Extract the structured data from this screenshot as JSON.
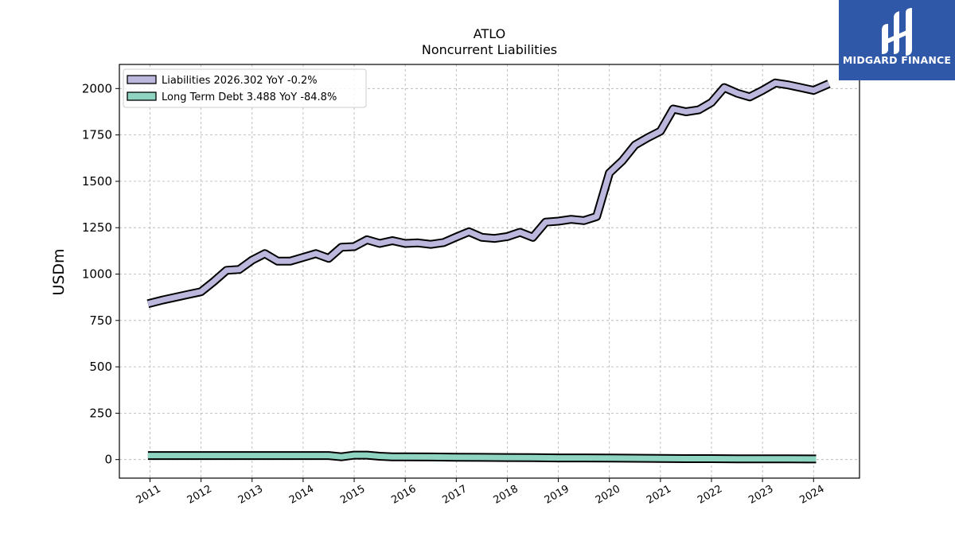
{
  "chart_data": {
    "type": "line",
    "title": "ATLO",
    "subtitle": "Noncurrent  Liabilities",
    "xlabel": "",
    "ylabel": "USDm",
    "xlim": [
      2010.4,
      2024.9
    ],
    "ylim": [
      -100,
      2130
    ],
    "yticks": [
      0,
      250,
      500,
      750,
      1000,
      1250,
      1500,
      1750,
      2000
    ],
    "xticks": [
      "2011",
      "2012",
      "2013",
      "2014",
      "2015",
      "2016",
      "2017",
      "2018",
      "2019",
      "2020",
      "2021",
      "2022",
      "2023",
      "2024"
    ],
    "grid": true,
    "legend_position": "top-left",
    "series": [
      {
        "name": "Liabilities",
        "legend_label": "Liabilities  2026.302 YoY -0.2%",
        "color": "#bcb7dc",
        "x": [
          2010.96,
          2011.25,
          2011.5,
          2011.75,
          2012.0,
          2012.25,
          2012.5,
          2012.75,
          2013.0,
          2013.25,
          2013.5,
          2013.75,
          2014.0,
          2014.25,
          2014.5,
          2014.75,
          2015.0,
          2015.25,
          2015.5,
          2015.75,
          2016.0,
          2016.25,
          2016.5,
          2016.75,
          2017.0,
          2017.25,
          2017.5,
          2017.75,
          2018.0,
          2018.25,
          2018.5,
          2018.75,
          2019.0,
          2019.25,
          2019.5,
          2019.75,
          2020.0,
          2020.25,
          2020.5,
          2020.75,
          2021.0,
          2021.25,
          2021.5,
          2021.75,
          2022.0,
          2022.25,
          2022.5,
          2022.75,
          2023.0,
          2023.25,
          2023.5,
          2023.75,
          2024.0,
          2024.3
        ],
        "values": [
          840,
          860,
          875,
          890,
          905,
          960,
          1020,
          1025,
          1075,
          1110,
          1070,
          1070,
          1090,
          1110,
          1085,
          1145,
          1148,
          1185,
          1165,
          1180,
          1165,
          1168,
          1160,
          1170,
          1200,
          1228,
          1198,
          1192,
          1202,
          1225,
          1198,
          1280,
          1285,
          1295,
          1288,
          1310,
          1545,
          1610,
          1695,
          1735,
          1770,
          1890,
          1875,
          1885,
          1925,
          2005,
          1975,
          1955,
          1990,
          2030,
          2020,
          2005,
          1990,
          2026
        ]
      },
      {
        "name": "Long Term Debt",
        "legend_label": "Long Term Debt  3.488 YoY -84.8%",
        "color": "#8fd3c1",
        "x": [
          2010.96,
          2011.5,
          2012.0,
          2012.5,
          2013.0,
          2013.5,
          2014.0,
          2014.5,
          2014.75,
          2015.0,
          2015.25,
          2015.5,
          2015.75,
          2016.0,
          2016.5,
          2017.0,
          2017.5,
          2018.0,
          2018.5,
          2019.0,
          2019.5,
          2020.0,
          2020.5,
          2021.0,
          2021.5,
          2022.0,
          2022.5,
          2023.0,
          2023.5,
          2024.05
        ],
        "values": [
          22,
          22,
          22,
          22,
          22,
          22,
          22,
          22,
          15,
          24,
          24,
          18,
          15,
          15,
          14,
          13,
          12,
          11,
          10,
          9,
          9,
          8,
          7,
          6,
          5,
          5,
          4,
          4,
          4,
          3.5
        ]
      }
    ]
  },
  "logo": {
    "text": "MIDGARD FINANCE",
    "bg_color": "#2f58a8"
  }
}
